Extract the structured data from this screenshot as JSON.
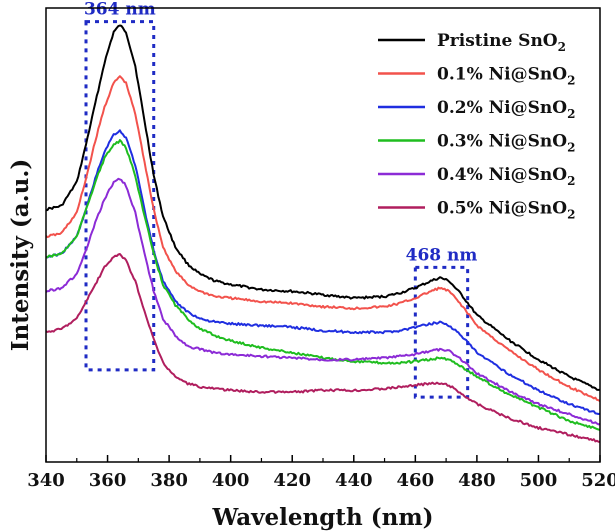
{
  "chart_data": {
    "type": "line",
    "xlabel": "Wavelength (nm)",
    "ylabel": "Intensity (a.u.)",
    "xlim": [
      340,
      520
    ],
    "x_ticks": [
      340,
      360,
      380,
      400,
      420,
      440,
      460,
      480,
      500,
      520
    ],
    "y_tick_labels": false,
    "grid": false,
    "legend_position": "top-right",
    "x_points": [
      340,
      345,
      350,
      353,
      356,
      359,
      362,
      364,
      366,
      369,
      372,
      375,
      378,
      382,
      386,
      390,
      395,
      400,
      410,
      420,
      430,
      440,
      450,
      455,
      460,
      465,
      468,
      471,
      475,
      480,
      490,
      500,
      510,
      520
    ],
    "series": [
      {
        "name_text": "Pristine SnO",
        "name_sub": "2",
        "color": "#000000",
        "values": [
          0.74,
          0.75,
          0.82,
          0.93,
          1.05,
          1.17,
          1.26,
          1.28,
          1.26,
          1.16,
          1.0,
          0.84,
          0.72,
          0.63,
          0.58,
          0.55,
          0.53,
          0.52,
          0.505,
          0.5,
          0.49,
          0.48,
          0.485,
          0.495,
          0.51,
          0.53,
          0.54,
          0.53,
          0.49,
          0.43,
          0.36,
          0.3,
          0.25,
          0.21
        ]
      },
      {
        "name_text": "0.1% Ni@SnO",
        "name_sub": "2",
        "color": "#f2524c",
        "values": [
          0.66,
          0.67,
          0.73,
          0.83,
          0.94,
          1.04,
          1.11,
          1.13,
          1.11,
          1.02,
          0.88,
          0.74,
          0.63,
          0.56,
          0.52,
          0.5,
          0.485,
          0.48,
          0.47,
          0.465,
          0.455,
          0.45,
          0.455,
          0.465,
          0.48,
          0.5,
          0.51,
          0.5,
          0.46,
          0.4,
          0.33,
          0.27,
          0.22,
          0.18
        ]
      },
      {
        "name_text": "0.2% Ni@SnO",
        "name_sub": "2",
        "color": "#1f2ee0",
        "values": [
          0.6,
          0.61,
          0.66,
          0.74,
          0.83,
          0.91,
          0.96,
          0.97,
          0.95,
          0.87,
          0.74,
          0.62,
          0.53,
          0.47,
          0.44,
          0.42,
          0.41,
          0.405,
          0.4,
          0.395,
          0.385,
          0.38,
          0.38,
          0.385,
          0.395,
          0.405,
          0.41,
          0.4,
          0.37,
          0.32,
          0.26,
          0.21,
          0.17,
          0.14
        ]
      },
      {
        "name_text": "0.3% Ni@SnO",
        "name_sub": "2",
        "color": "#1fbd1f",
        "values": [
          0.6,
          0.61,
          0.66,
          0.74,
          0.82,
          0.89,
          0.93,
          0.94,
          0.92,
          0.84,
          0.72,
          0.61,
          0.52,
          0.46,
          0.42,
          0.39,
          0.37,
          0.355,
          0.335,
          0.32,
          0.305,
          0.295,
          0.29,
          0.29,
          0.295,
          0.3,
          0.305,
          0.3,
          0.28,
          0.25,
          0.2,
          0.16,
          0.12,
          0.095
        ]
      },
      {
        "name_text": "0.4% Ni@SnO",
        "name_sub": "2",
        "color": "#8c2bd6",
        "values": [
          0.5,
          0.51,
          0.55,
          0.62,
          0.7,
          0.77,
          0.82,
          0.83,
          0.81,
          0.73,
          0.61,
          0.5,
          0.42,
          0.37,
          0.34,
          0.33,
          0.32,
          0.315,
          0.31,
          0.305,
          0.3,
          0.3,
          0.305,
          0.31,
          0.315,
          0.325,
          0.33,
          0.325,
          0.3,
          0.26,
          0.21,
          0.17,
          0.14,
          0.11
        ]
      },
      {
        "name_text": "0.5% Ni@SnO",
        "name_sub": "2",
        "color": "#b01e5e",
        "values": [
          0.38,
          0.39,
          0.42,
          0.47,
          0.52,
          0.57,
          0.6,
          0.61,
          0.59,
          0.53,
          0.44,
          0.36,
          0.29,
          0.25,
          0.23,
          0.22,
          0.215,
          0.21,
          0.205,
          0.205,
          0.21,
          0.21,
          0.215,
          0.22,
          0.225,
          0.23,
          0.23,
          0.225,
          0.2,
          0.17,
          0.13,
          0.1,
          0.08,
          0.06
        ]
      }
    ],
    "annotations": [
      {
        "label": "364 nm",
        "color": "#1f2bc4",
        "x_range": [
          353,
          375
        ],
        "y_range": [
          0.27,
          1.29
        ]
      },
      {
        "label": "468 nm",
        "color": "#1f2bc4",
        "x_range": [
          460,
          477
        ],
        "y_range": [
          0.19,
          0.57
        ]
      }
    ]
  }
}
